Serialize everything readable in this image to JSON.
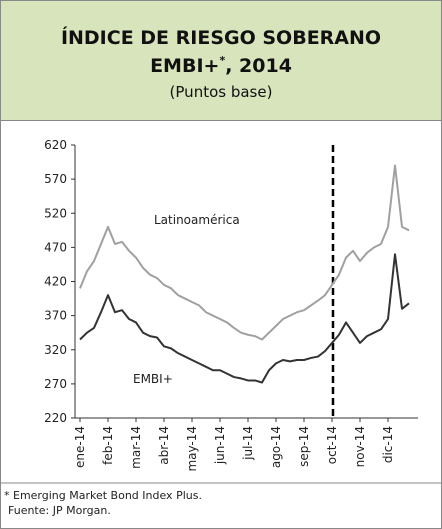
{
  "chart_data": {
    "type": "line",
    "title_line1": "ÍNDICE DE RIESGO SOBERANO",
    "title_line2": "EMBI+",
    "title_superscript": "*",
    "title_line2_end": ", 2014",
    "subtitle": "(Puntos base)",
    "categories": [
      "ene-14",
      null,
      null,
      null,
      "feb-14",
      null,
      null,
      null,
      "mar-14",
      null,
      null,
      null,
      "abr-14",
      null,
      null,
      null,
      "may-14",
      null,
      null,
      null,
      "jun-14",
      null,
      null,
      null,
      "jul-14",
      null,
      null,
      null,
      "ago-14",
      null,
      null,
      null,
      "sep-14",
      null,
      null,
      null,
      "oct-14",
      null,
      null,
      null,
      "nov-14",
      null,
      null,
      null,
      "dic-14",
      null,
      null,
      null
    ],
    "series": [
      {
        "name": "Latinoamérica",
        "color": "#a0a0a0",
        "values": [
          410,
          435,
          450,
          475,
          500,
          475,
          478,
          465,
          455,
          440,
          430,
          425,
          415,
          410,
          400,
          395,
          390,
          385,
          375,
          370,
          365,
          360,
          352,
          345,
          342,
          340,
          335,
          345,
          355,
          365,
          370,
          375,
          378,
          385,
          392,
          400,
          415,
          430,
          455,
          465,
          450,
          462,
          470,
          475,
          500,
          590,
          500,
          495
        ]
      },
      {
        "name": "EMBI+",
        "color": "#333333",
        "values": [
          335,
          345,
          352,
          375,
          400,
          375,
          378,
          365,
          360,
          345,
          340,
          338,
          325,
          322,
          315,
          310,
          305,
          300,
          295,
          290,
          290,
          285,
          280,
          278,
          275,
          275,
          272,
          290,
          300,
          305,
          303,
          305,
          305,
          308,
          310,
          318,
          330,
          342,
          360,
          345,
          330,
          340,
          345,
          350,
          365,
          460,
          380,
          388
        ]
      }
    ],
    "ylim": [
      220,
      620
    ],
    "yticks": [
      220,
      270,
      320,
      370,
      420,
      470,
      520,
      570,
      620
    ],
    "footnote": "* Emerging Market Bond Index Plus.",
    "source": "Fuente: JP Morgan."
  }
}
